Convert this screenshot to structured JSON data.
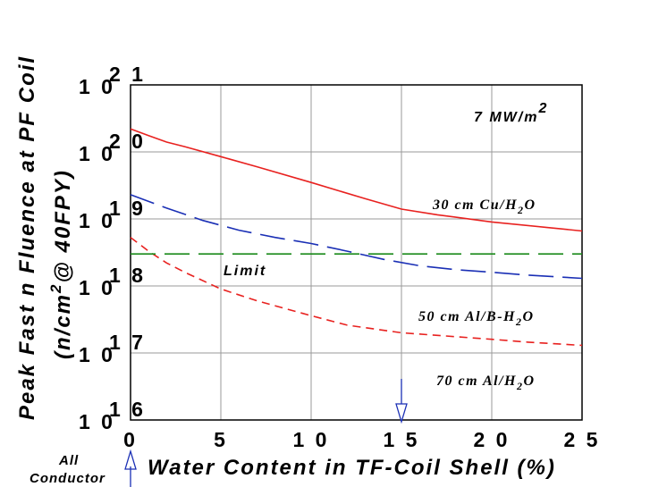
{
  "chart_data": {
    "type": "line",
    "title": "",
    "xlabel": "Water Content in TF-Coil Shell (%)",
    "ylabel": "Peak Fast n Fluence at PF Coil",
    "ylabel2": "(n/cm",
    "ylabel2_sup": "2",
    "ylabel2_end": "@ 40FPY)",
    "x_ticks": [
      "0",
      "5",
      "1 0",
      "1 5",
      "2 0",
      "2 5"
    ],
    "y_ticks": [
      {
        "base": "1 0",
        "exp": "1 6"
      },
      {
        "base": "1 0",
        "exp": "1 7"
      },
      {
        "base": "1 0",
        "exp": "1 8"
      },
      {
        "base": "1 0",
        "exp": "1 9"
      },
      {
        "base": "1 0",
        "exp": "2 0"
      },
      {
        "base": "1 0",
        "exp": "2 1"
      }
    ],
    "xlim": [
      0,
      25
    ],
    "ylim_log10": [
      16,
      21
    ],
    "x_tick_values": [
      0,
      5,
      10,
      15,
      20,
      25
    ],
    "y_tick_values": [
      16,
      17,
      18,
      19,
      20,
      21
    ],
    "y_scale": "log",
    "grid": true,
    "series": [
      {
        "name": "30 cm Cu/H2O",
        "color": "#e8211f",
        "style": "solid",
        "x": [
          0,
          1,
          2,
          3,
          5,
          7,
          10,
          13,
          15,
          17,
          20,
          23,
          25
        ],
        "y": [
          2.2e+20,
          1.75e+20,
          1.4e+20,
          1.2e+20,
          8.5e+19,
          6e+19,
          3.5e+19,
          2e+19,
          1.4e+19,
          1.15e+19,
          9e+18,
          7.5e+18,
          6.6e+18
        ]
      },
      {
        "name": "50 cm Al/B-H2O",
        "color": "#1a2fb5",
        "style": "long-dash",
        "x": [
          0,
          2,
          4,
          6,
          8,
          10,
          12,
          14,
          16,
          18,
          20,
          22,
          25
        ],
        "y": [
          2.3e+19,
          1.45e+19,
          9.5e+18,
          6.8e+18,
          5.3e+18,
          4.3e+18,
          3.3e+18,
          2.5e+18,
          2e+18,
          1.75e+18,
          1.6e+18,
          1.45e+18,
          1.3e+18
        ]
      },
      {
        "name": "70 cm Al/H2O",
        "color": "#e8211f",
        "style": "short-dash",
        "x": [
          0,
          1,
          2,
          3,
          5,
          7,
          10,
          12,
          15,
          18,
          20,
          22,
          25
        ],
        "y": [
          5.3e+18,
          3.3e+18,
          2.2e+18,
          1.6e+18,
          9e+17,
          6e+17,
          3.6e+17,
          2.6e+17,
          2e+17,
          1.75e+17,
          1.6e+17,
          1.45e+17,
          1.3e+17
        ]
      },
      {
        "name": "Limit",
        "color": "#1a8a1a",
        "style": "long-dash",
        "x": [
          0,
          25
        ],
        "y": [
          3e+18,
          3e+18
        ]
      }
    ],
    "annotations": {
      "wall_load": "7 MW/m",
      "wall_load_sup": "2",
      "limit_label": "Limit",
      "label_cu_main": "30 cm Cu/H",
      "label_cu_sub": "2",
      "label_cu_end": "O",
      "label_alb_main": "50 cm Al/B-H",
      "label_alb_sub": "2",
      "label_alb_end": "O",
      "label_al_main": "70 cm Al/H",
      "label_al_sub": "2",
      "label_al_end": "O",
      "all_conductor_1": "All",
      "all_conductor_2": "Conductor"
    },
    "markers": [
      {
        "x": 15,
        "direction": "down",
        "color": "#1a2fb5"
      },
      {
        "x": 0,
        "direction": "up",
        "color": "#1a2fb5"
      }
    ]
  }
}
